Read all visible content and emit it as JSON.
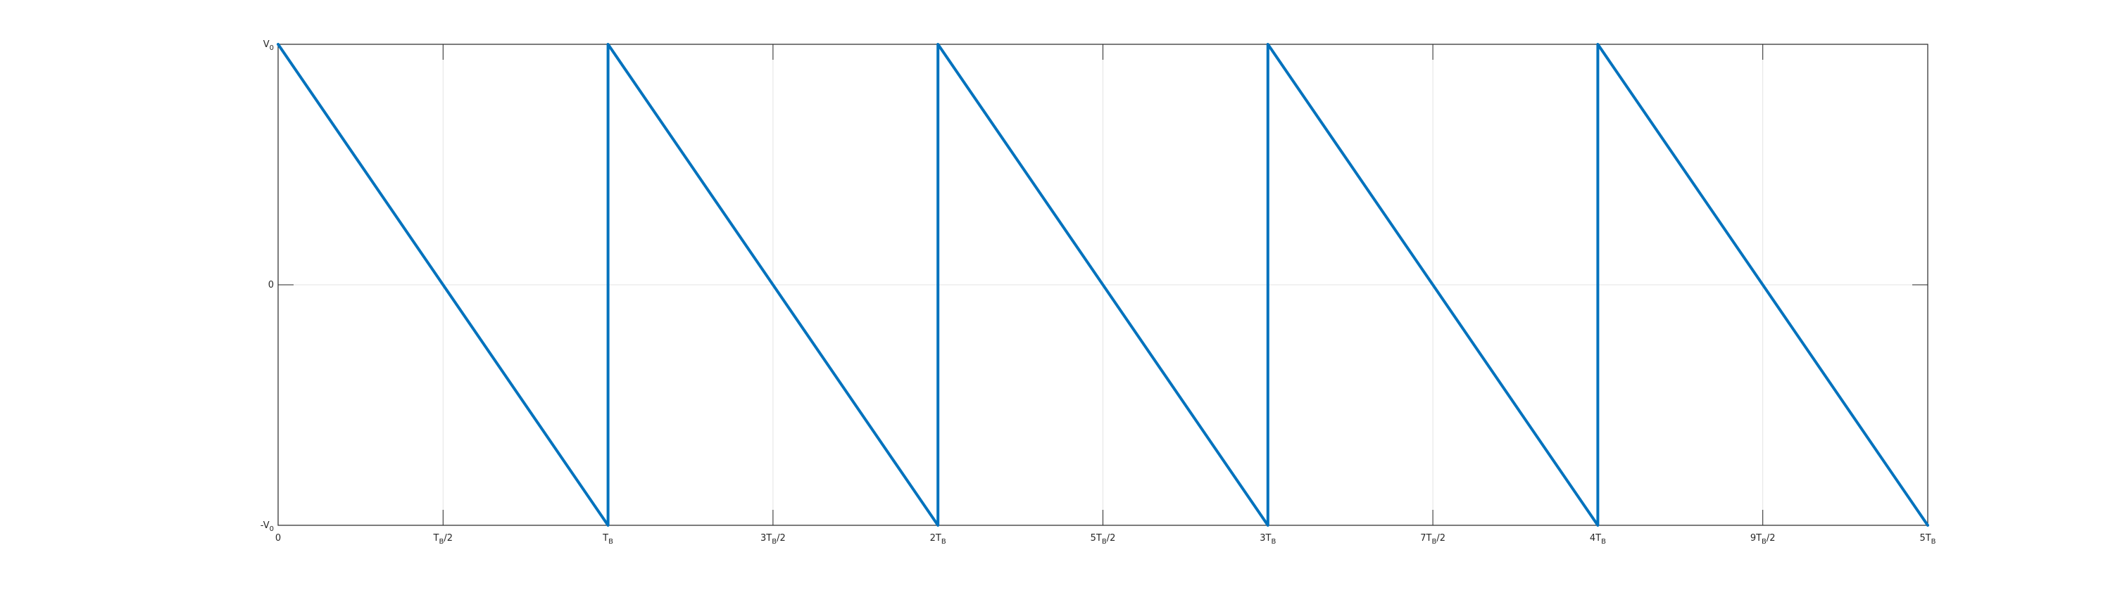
{
  "chart_data": {
    "type": "line",
    "title": "",
    "xlabel": "",
    "ylabel": "",
    "xlim": [
      0,
      5
    ],
    "ylim": [
      -1,
      1
    ],
    "grid": true,
    "x_ticks": [
      {
        "value": 0,
        "main": "0",
        "sub": "",
        "suffix": ""
      },
      {
        "value": 0.5,
        "main": "T",
        "sub": "B",
        "suffix": "/2"
      },
      {
        "value": 1,
        "main": "T",
        "sub": "B",
        "suffix": ""
      },
      {
        "value": 1.5,
        "main": "3T",
        "sub": "B",
        "suffix": "/2"
      },
      {
        "value": 2,
        "main": "2T",
        "sub": "B",
        "suffix": ""
      },
      {
        "value": 2.5,
        "main": "5T",
        "sub": "B",
        "suffix": "/2"
      },
      {
        "value": 3,
        "main": "3T",
        "sub": "B",
        "suffix": ""
      },
      {
        "value": 3.5,
        "main": "7T",
        "sub": "B",
        "suffix": "/2"
      },
      {
        "value": 4,
        "main": "4T",
        "sub": "B",
        "suffix": ""
      },
      {
        "value": 4.5,
        "main": "9T",
        "sub": "B",
        "suffix": "/2"
      },
      {
        "value": 5,
        "main": "5T",
        "sub": "B",
        "suffix": ""
      }
    ],
    "y_ticks": [
      {
        "value": -1,
        "main": "-V",
        "sub": "0",
        "suffix": ""
      },
      {
        "value": 0,
        "main": "0",
        "sub": "",
        "suffix": ""
      },
      {
        "value": 1,
        "main": "V",
        "sub": "0",
        "suffix": ""
      }
    ],
    "series": [
      {
        "color": "#0072BD",
        "x": [
          0,
          1,
          1,
          2,
          2,
          3,
          3,
          4,
          4,
          5
        ],
        "y": [
          1,
          -1,
          1,
          -1,
          1,
          -1,
          1,
          -1,
          1,
          -1
        ]
      }
    ]
  }
}
